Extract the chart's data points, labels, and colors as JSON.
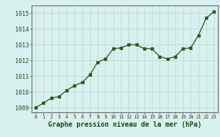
{
  "x": [
    0,
    1,
    2,
    3,
    4,
    5,
    6,
    7,
    8,
    9,
    10,
    11,
    12,
    13,
    14,
    15,
    16,
    17,
    18,
    19,
    20,
    21,
    22,
    23
  ],
  "y": [
    1009.0,
    1009.3,
    1009.6,
    1009.7,
    1010.1,
    1010.4,
    1010.6,
    1011.1,
    1011.9,
    1012.1,
    1012.75,
    1012.8,
    1013.0,
    1013.0,
    1012.75,
    1012.75,
    1012.25,
    1012.1,
    1012.25,
    1012.75,
    1012.8,
    1013.6,
    1014.7,
    1015.1
  ],
  "line_color": "#2d5a1b",
  "marker": "s",
  "marker_size": 2.5,
  "bg_color": "#d8f0ee",
  "grid_color": "#b8dbd8",
  "ylabel_values": [
    1009,
    1010,
    1011,
    1012,
    1013,
    1014,
    1015
  ],
  "xlabel_values": [
    0,
    1,
    2,
    3,
    4,
    5,
    6,
    7,
    8,
    9,
    10,
    11,
    12,
    13,
    14,
    15,
    16,
    17,
    18,
    19,
    20,
    21,
    22,
    23
  ],
  "xlabel_label": "Graphe pression niveau de la mer (hPa)",
  "xlabel_color": "#1a4a1a",
  "ylim": [
    1008.7,
    1015.5
  ],
  "xlim": [
    -0.5,
    23.5
  ],
  "tick_color": "#1a4a1a",
  "spine_color": "#666666",
  "tick_fontsize": 6,
  "xlabel_fontsize": 7,
  "line_width": 1.0
}
